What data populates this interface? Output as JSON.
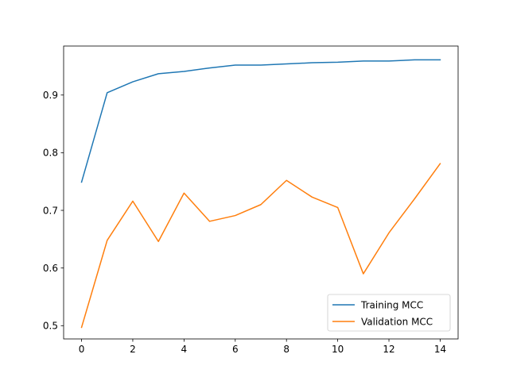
{
  "chart_data": {
    "type": "line",
    "title": "",
    "xlabel": "",
    "ylabel": "",
    "x": [
      0,
      1,
      2,
      3,
      4,
      5,
      6,
      7,
      8,
      9,
      10,
      11,
      12,
      13,
      14
    ],
    "xlim": [
      -0.7,
      14.7
    ],
    "ylim": [
      0.477,
      0.985
    ],
    "xticks": [
      0,
      2,
      4,
      6,
      8,
      10,
      12,
      14
    ],
    "yticks": [
      0.5,
      0.6,
      0.7,
      0.8,
      0.9
    ],
    "xtick_labels": [
      "0",
      "2",
      "4",
      "6",
      "8",
      "10",
      "12",
      "14"
    ],
    "ytick_labels": [
      "0.5",
      "0.6",
      "0.7",
      "0.8",
      "0.9"
    ],
    "grid": false,
    "legend_position": "bottom-right",
    "series": [
      {
        "name": "Training MCC",
        "color": "#1f77b4",
        "values": [
          0.749,
          0.904,
          0.923,
          0.937,
          0.941,
          0.947,
          0.952,
          0.952,
          0.954,
          0.956,
          0.957,
          0.959,
          0.959,
          0.961,
          0.961
        ]
      },
      {
        "name": "Validation MCC",
        "color": "#ff7f0e",
        "values": [
          0.497,
          0.648,
          0.716,
          0.646,
          0.73,
          0.681,
          0.691,
          0.71,
          0.752,
          0.723,
          0.705,
          0.59,
          0.661,
          0.72,
          0.781
        ]
      }
    ]
  }
}
